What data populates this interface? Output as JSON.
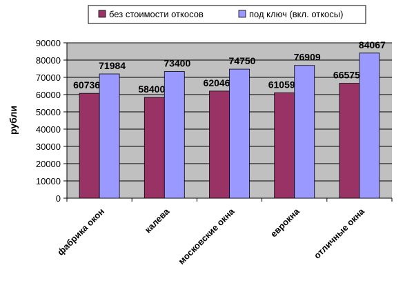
{
  "chart_data": {
    "type": "bar",
    "categories": [
      "фабрика окон",
      "калева",
      "московские окна",
      "еврокна",
      "отличные окна"
    ],
    "series": [
      {
        "name": "без стоимости откосов",
        "values": [
          60736,
          58400,
          62046,
          61059,
          66575
        ],
        "color": "#993366"
      },
      {
        "name": "под ключ (вкл. откосы)",
        "values": [
          71984,
          73400,
          74750,
          76909,
          84067
        ],
        "color": "#9999ff"
      }
    ],
    "title": "",
    "xlabel": "",
    "ylabel": "рубли",
    "ylim": [
      0,
      90000
    ],
    "yticks": [
      0,
      10000,
      20000,
      30000,
      40000,
      50000,
      60000,
      70000,
      80000,
      90000
    ],
    "grid": true,
    "legend": "top",
    "plot_background": "#c0c0c0",
    "gridline_color": "#000000"
  }
}
